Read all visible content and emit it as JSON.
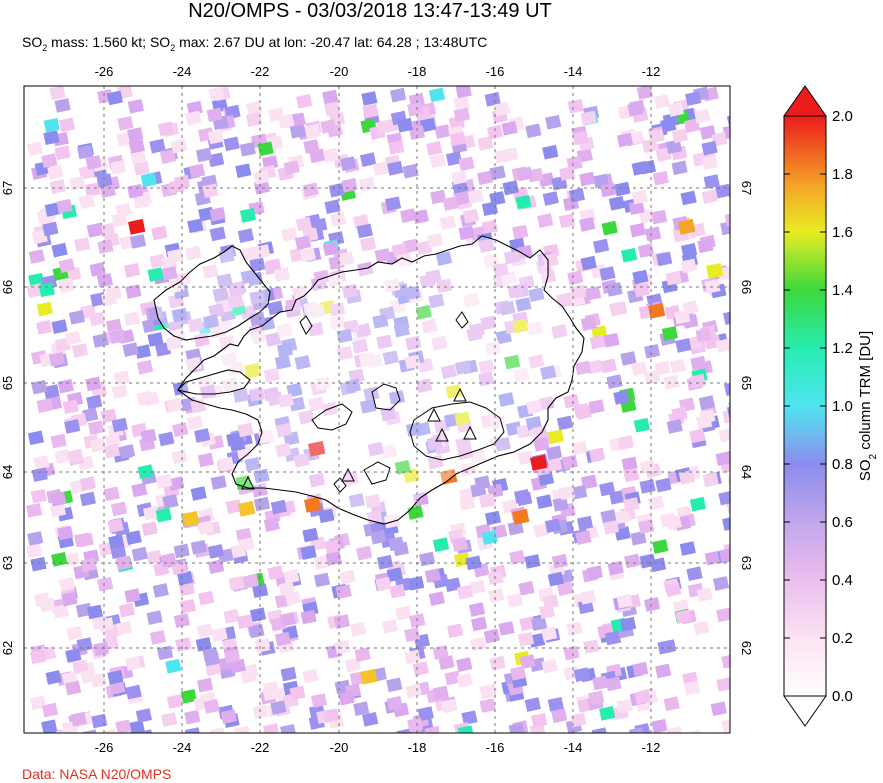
{
  "header": {
    "title": "N20/OMPS - 03/03/2018 13:47-13:49 UT",
    "so2_mass_label": "SO",
    "so2_mass_value": " mass: 1.560 kt; SO",
    "so2_max_value": " max: 2.67 DU at lon: -20.47 lat: 64.28 ; 13:48UTC",
    "subscript": "2"
  },
  "map": {
    "lon_ticks": [
      "-26",
      "-24",
      "-22",
      "-20",
      "-18",
      "-16",
      "-14",
      "-12"
    ],
    "lat_ticks": [
      "67",
      "66",
      "65",
      "64",
      "63",
      "62"
    ],
    "colors": {
      "iceland_fill": "#ffffff",
      "coastline": "#000000",
      "gridline": "#777777"
    },
    "volcano_icon": "triangle-outline-icon"
  },
  "colorbar": {
    "ticks": [
      "2.0",
      "1.8",
      "1.6",
      "1.4",
      "1.2",
      "1.0",
      "0.8",
      "0.6",
      "0.4",
      "0.2",
      "0.0"
    ],
    "label_prefix": "SO",
    "label_suffix": " column TRM [DU]"
  },
  "footer": {
    "credit": "Data: NASA N20/OMPS"
  }
}
